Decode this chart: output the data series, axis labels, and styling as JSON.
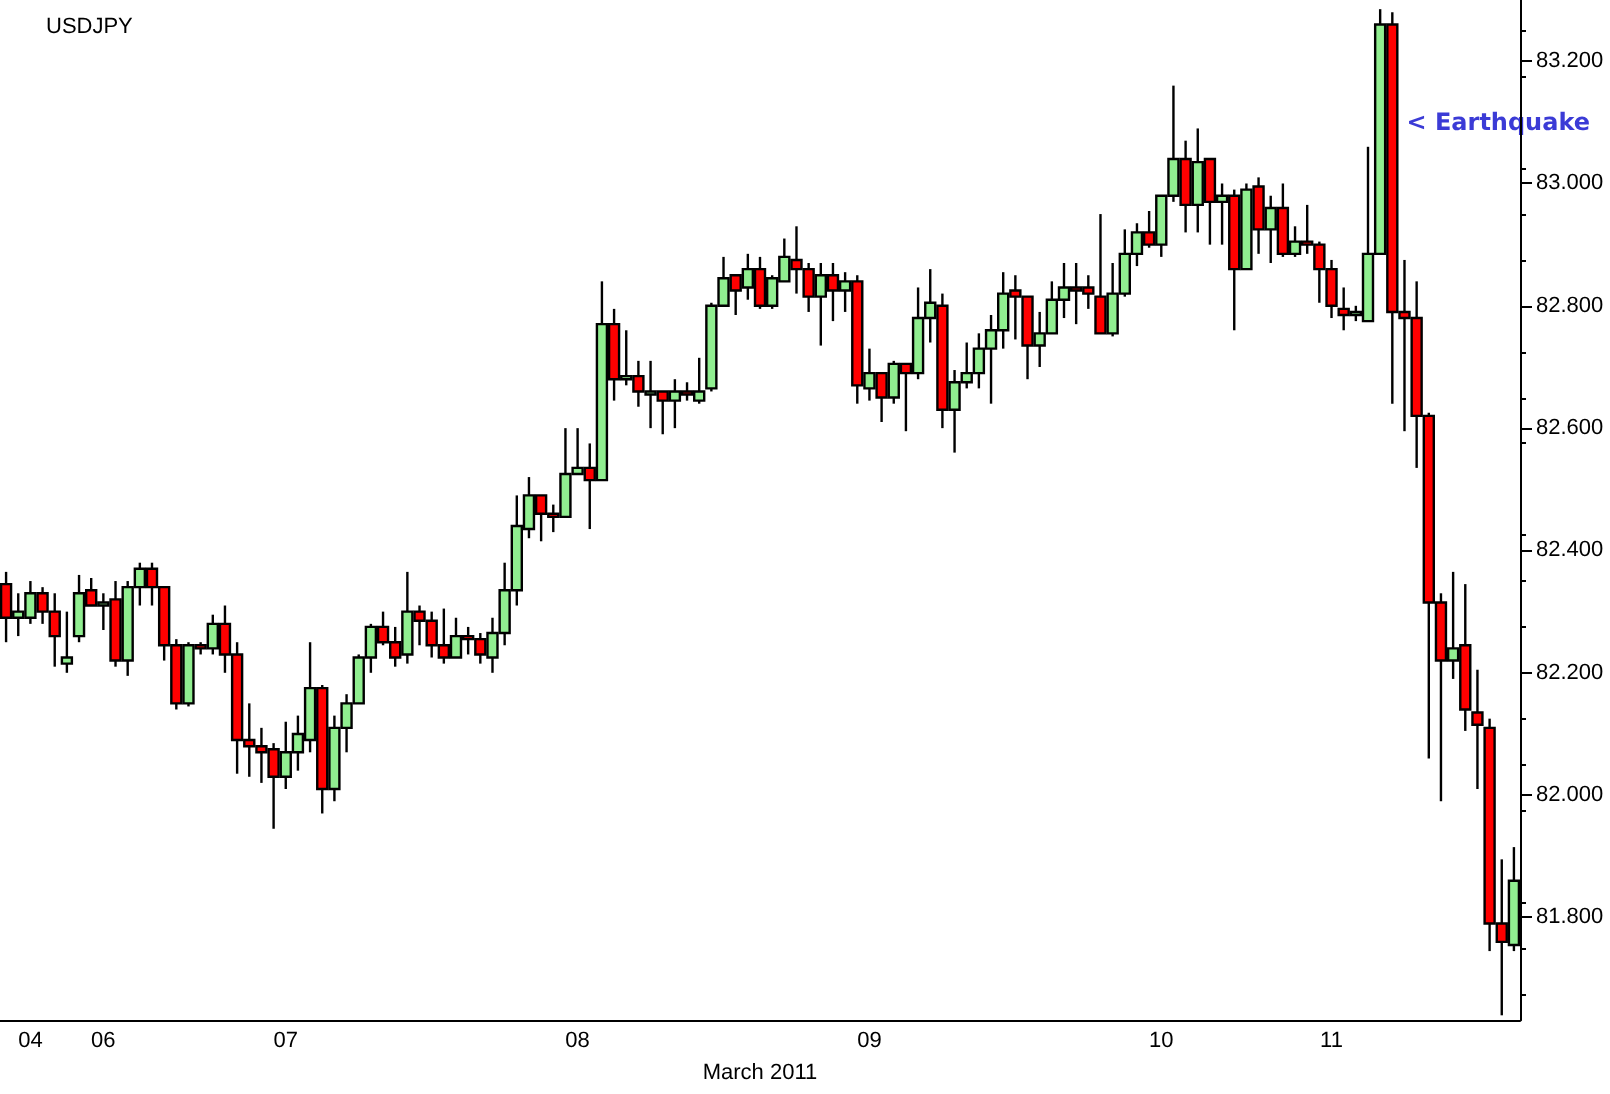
{
  "chart_data": {
    "type": "candlestick",
    "title": "USDJPY",
    "xlabel": "March 2011",
    "categories": [
      null,
      null,
      "04",
      null,
      null,
      null,
      null,
      null,
      "06",
      null,
      null,
      null,
      null,
      null,
      null,
      null,
      null,
      null,
      null,
      null,
      null,
      null,
      null,
      "07",
      null,
      null,
      null,
      null,
      null,
      null,
      null,
      null,
      null,
      null,
      null,
      null,
      null,
      null,
      null,
      null,
      null,
      null,
      null,
      null,
      null,
      null,
      null,
      "08",
      null,
      null,
      null,
      null,
      null,
      null,
      null,
      null,
      null,
      null,
      null,
      null,
      null,
      null,
      null,
      null,
      null,
      null,
      null,
      null,
      null,
      null,
      null,
      "09",
      null,
      null,
      null,
      null,
      null,
      null,
      null,
      null,
      null,
      null,
      null,
      null,
      null,
      null,
      null,
      null,
      null,
      null,
      null,
      null,
      null,
      null,
      null,
      "10",
      null,
      null,
      null,
      null,
      null,
      null,
      null,
      null,
      null,
      null,
      null,
      null,
      null,
      "11",
      null,
      null,
      null,
      null,
      null,
      null,
      null,
      null,
      null,
      null,
      null,
      null,
      null,
      null,
      null
    ],
    "ohlc": [
      [
        82.345,
        82.365,
        82.25,
        82.29
      ],
      [
        82.29,
        82.33,
        82.26,
        82.3
      ],
      [
        82.29,
        82.35,
        82.28,
        82.33
      ],
      [
        82.33,
        82.34,
        82.28,
        82.3
      ],
      [
        82.3,
        82.33,
        82.21,
        82.26
      ],
      [
        82.215,
        82.3,
        82.2,
        82.225
      ],
      [
        82.26,
        82.36,
        82.25,
        82.33
      ],
      [
        82.335,
        82.355,
        82.31,
        82.31
      ],
      [
        82.31,
        82.33,
        82.27,
        82.315
      ],
      [
        82.32,
        82.35,
        82.21,
        82.22
      ],
      [
        82.22,
        82.35,
        82.195,
        82.34
      ],
      [
        82.34,
        82.38,
        82.31,
        82.37
      ],
      [
        82.37,
        82.38,
        82.31,
        82.34
      ],
      [
        82.34,
        82.34,
        82.22,
        82.245
      ],
      [
        82.245,
        82.255,
        82.14,
        82.15
      ],
      [
        82.15,
        82.25,
        82.145,
        82.245
      ],
      [
        82.245,
        82.25,
        82.23,
        82.24
      ],
      [
        82.24,
        82.295,
        82.23,
        82.28
      ],
      [
        82.28,
        82.31,
        82.2,
        82.23
      ],
      [
        82.23,
        82.25,
        82.035,
        82.09
      ],
      [
        82.09,
        82.15,
        82.03,
        82.08
      ],
      [
        82.08,
        82.11,
        82.02,
        82.07
      ],
      [
        82.075,
        82.085,
        81.945,
        82.03
      ],
      [
        82.03,
        82.12,
        82.01,
        82.07
      ],
      [
        82.07,
        82.13,
        82.04,
        82.1
      ],
      [
        82.09,
        82.25,
        82.07,
        82.175
      ],
      [
        82.175,
        82.18,
        81.97,
        82.01
      ],
      [
        82.01,
        82.13,
        81.99,
        82.11
      ],
      [
        82.11,
        82.165,
        82.07,
        82.15
      ],
      [
        82.15,
        82.23,
        82.15,
        82.225
      ],
      [
        82.225,
        82.28,
        82.2,
        82.275
      ],
      [
        82.275,
        82.3,
        82.245,
        82.25
      ],
      [
        82.25,
        82.275,
        82.21,
        82.225
      ],
      [
        82.23,
        82.365,
        82.215,
        82.3
      ],
      [
        82.3,
        82.31,
        82.245,
        82.285
      ],
      [
        82.285,
        82.3,
        82.225,
        82.245
      ],
      [
        82.245,
        82.305,
        82.215,
        82.225
      ],
      [
        82.225,
        82.29,
        82.225,
        82.26
      ],
      [
        82.26,
        82.275,
        82.23,
        82.255
      ],
      [
        82.255,
        82.265,
        82.215,
        82.23
      ],
      [
        82.225,
        82.29,
        82.2,
        82.265
      ],
      [
        82.265,
        82.38,
        82.245,
        82.335
      ],
      [
        82.335,
        82.49,
        82.31,
        82.44
      ],
      [
        82.435,
        82.52,
        82.42,
        82.49
      ],
      [
        82.49,
        82.49,
        82.415,
        82.46
      ],
      [
        82.46,
        82.475,
        82.43,
        82.455
      ],
      [
        82.455,
        82.6,
        82.455,
        82.525
      ],
      [
        82.525,
        82.6,
        82.525,
        82.535
      ],
      [
        82.535,
        82.575,
        82.435,
        82.515
      ],
      [
        82.515,
        82.84,
        82.515,
        82.77
      ],
      [
        82.77,
        82.795,
        82.645,
        82.68
      ],
      [
        82.68,
        82.76,
        82.67,
        82.685
      ],
      [
        82.685,
        82.71,
        82.635,
        82.66
      ],
      [
        82.655,
        82.71,
        82.6,
        82.66
      ],
      [
        82.66,
        82.66,
        82.59,
        82.645
      ],
      [
        82.645,
        82.68,
        82.6,
        82.66
      ],
      [
        82.66,
        82.675,
        82.645,
        82.655
      ],
      [
        82.645,
        82.715,
        82.64,
        82.66
      ],
      [
        82.665,
        82.805,
        82.66,
        82.8
      ],
      [
        82.8,
        82.88,
        82.8,
        82.845
      ],
      [
        82.85,
        82.85,
        82.785,
        82.825
      ],
      [
        82.83,
        82.885,
        82.81,
        82.86
      ],
      [
        82.86,
        82.88,
        82.795,
        82.8
      ],
      [
        82.8,
        82.85,
        82.795,
        82.845
      ],
      [
        82.84,
        82.91,
        82.84,
        82.88
      ],
      [
        82.875,
        82.93,
        82.82,
        82.86
      ],
      [
        82.86,
        82.87,
        82.79,
        82.815
      ],
      [
        82.815,
        82.87,
        82.735,
        82.85
      ],
      [
        82.85,
        82.87,
        82.775,
        82.825
      ],
      [
        82.825,
        82.855,
        82.79,
        82.84
      ],
      [
        82.84,
        82.85,
        82.64,
        82.67
      ],
      [
        82.665,
        82.73,
        82.645,
        82.69
      ],
      [
        82.69,
        82.69,
        82.61,
        82.65
      ],
      [
        82.65,
        82.71,
        82.64,
        82.705
      ],
      [
        82.705,
        82.705,
        82.595,
        82.69
      ],
      [
        82.69,
        82.83,
        82.68,
        82.78
      ],
      [
        82.78,
        82.86,
        82.74,
        82.805
      ],
      [
        82.8,
        82.82,
        82.6,
        82.63
      ],
      [
        82.63,
        82.695,
        82.56,
        82.675
      ],
      [
        82.675,
        82.74,
        82.665,
        82.69
      ],
      [
        82.69,
        82.755,
        82.665,
        82.73
      ],
      [
        82.73,
        82.785,
        82.64,
        82.76
      ],
      [
        82.76,
        82.855,
        82.73,
        82.82
      ],
      [
        82.825,
        82.85,
        82.745,
        82.815
      ],
      [
        82.815,
        82.815,
        82.68,
        82.735
      ],
      [
        82.735,
        82.79,
        82.7,
        82.755
      ],
      [
        82.755,
        82.84,
        82.755,
        82.81
      ],
      [
        82.81,
        82.87,
        82.78,
        82.83
      ],
      [
        82.83,
        82.87,
        82.77,
        82.825
      ],
      [
        82.83,
        82.85,
        82.795,
        82.82
      ],
      [
        82.815,
        82.95,
        82.755,
        82.755
      ],
      [
        82.755,
        82.87,
        82.75,
        82.82
      ],
      [
        82.82,
        82.925,
        82.815,
        82.885
      ],
      [
        82.885,
        82.935,
        82.865,
        82.92
      ],
      [
        82.92,
        82.955,
        82.895,
        82.9
      ],
      [
        82.9,
        82.98,
        82.88,
        82.98
      ],
      [
        82.98,
        83.16,
        82.97,
        83.04
      ],
      [
        83.04,
        83.07,
        82.92,
        82.965
      ],
      [
        82.965,
        83.09,
        82.92,
        83.035
      ],
      [
        83.04,
        83.04,
        82.9,
        82.97
      ],
      [
        82.97,
        83,
        82.9,
        82.98
      ],
      [
        82.98,
        82.99,
        82.76,
        82.86
      ],
      [
        82.86,
        83,
        82.86,
        82.99
      ],
      [
        82.995,
        83.01,
        82.885,
        82.925
      ],
      [
        82.925,
        82.98,
        82.87,
        82.96
      ],
      [
        82.96,
        83,
        82.88,
        82.885
      ],
      [
        82.885,
        82.93,
        82.88,
        82.905
      ],
      [
        82.905,
        82.965,
        82.885,
        82.9
      ],
      [
        82.9,
        82.905,
        82.805,
        82.86
      ],
      [
        82.86,
        82.875,
        82.78,
        82.8
      ],
      [
        82.795,
        82.83,
        82.76,
        82.785
      ],
      [
        82.785,
        82.8,
        82.775,
        82.79
      ],
      [
        82.775,
        83.06,
        82.775,
        82.885
      ],
      [
        82.885,
        83.285,
        82.885,
        83.26
      ],
      [
        83.26,
        83.28,
        82.64,
        82.79
      ],
      [
        82.79,
        82.875,
        82.595,
        82.78
      ],
      [
        82.78,
        82.84,
        82.535,
        82.62
      ],
      [
        82.62,
        82.625,
        82.06,
        82.315
      ],
      [
        82.315,
        82.33,
        81.99,
        82.22
      ],
      [
        82.22,
        82.365,
        82.19,
        82.24
      ],
      [
        82.245,
        82.345,
        82.105,
        82.14
      ],
      [
        82.135,
        82.205,
        82.01,
        82.115
      ],
      [
        82.11,
        82.125,
        81.745,
        81.79
      ],
      [
        81.79,
        81.895,
        81.64,
        81.76
      ],
      [
        81.755,
        81.915,
        81.745,
        81.86
      ]
    ],
    "colors": [
      "#ff0000",
      "#90ee90",
      "#90ee90",
      "#ff0000",
      "#ff0000",
      "#90ee90",
      "#90ee90",
      "#ff0000",
      "#90ee90",
      "#ff0000",
      "#90ee90",
      "#90ee90",
      "#ff0000",
      "#ff0000",
      "#ff0000",
      "#90ee90",
      "#ff0000",
      "#90ee90",
      "#ff0000",
      "#ff0000",
      "#ff0000",
      "#ff0000",
      "#ff0000",
      "#90ee90",
      "#90ee90",
      "#90ee90",
      "#ff0000",
      "#90ee90",
      "#90ee90",
      "#90ee90",
      "#90ee90",
      "#ff0000",
      "#ff0000",
      "#90ee90",
      "#ff0000",
      "#ff0000",
      "#ff0000",
      "#90ee90",
      "#ff0000",
      "#ff0000",
      "#90ee90",
      "#90ee90",
      "#90ee90",
      "#90ee90",
      "#ff0000",
      "#ff0000",
      "#90ee90",
      "#90ee90",
      "#ff0000",
      "#90ee90",
      "#ff0000",
      "#90ee90",
      "#ff0000",
      "#90ee90",
      "#ff0000",
      "#90ee90",
      "#ff0000",
      "#90ee90",
      "#90ee90",
      "#90ee90",
      "#ff0000",
      "#90ee90",
      "#ff0000",
      "#90ee90",
      "#90ee90",
      "#ff0000",
      "#ff0000",
      "#90ee90",
      "#ff0000",
      "#90ee90",
      "#ff0000",
      "#90ee90",
      "#ff0000",
      "#90ee90",
      "#ff0000",
      "#90ee90",
      "#90ee90",
      "#ff0000",
      "#90ee90",
      "#90ee90",
      "#90ee90",
      "#90ee90",
      "#90ee90",
      "#ff0000",
      "#ff0000",
      "#90ee90",
      "#90ee90",
      "#90ee90",
      "#ff0000",
      "#ff0000",
      "#ff0000",
      "#90ee90",
      "#90ee90",
      "#90ee90",
      "#ff0000",
      "#90ee90",
      "#90ee90",
      "#ff0000",
      "#90ee90",
      "#ff0000",
      "#90ee90",
      "#ff0000",
      "#90ee90",
      "#ff0000",
      "#90ee90",
      "#ff0000",
      "#90ee90",
      "#ff0000",
      "#ff0000",
      "#ff0000",
      "#ff0000",
      "#90ee90",
      "#90ee90",
      "#90ee90",
      "#ff0000",
      "#ff0000",
      "#ff0000",
      "#ff0000",
      "#ff0000",
      "#90ee90",
      "#ff0000",
      "#ff0000",
      "#ff0000",
      "#ff0000",
      "#90ee90"
    ],
    "ylim": [
      81.632,
      83.3
    ],
    "yticks": [
      {
        "value": 81.8,
        "label": "81.800"
      },
      {
        "value": 82,
        "label": "82.000"
      },
      {
        "value": 82.2,
        "label": "82.200"
      },
      {
        "value": 82.4,
        "label": "82.400"
      },
      {
        "value": 82.6,
        "label": "82.600"
      },
      {
        "value": 82.8,
        "label": "82.800"
      },
      {
        "value": 83,
        "label": "83.000"
      },
      {
        "value": 83.2,
        "label": "83.200"
      }
    ],
    "annotations": [
      "< Earthquake"
    ]
  }
}
